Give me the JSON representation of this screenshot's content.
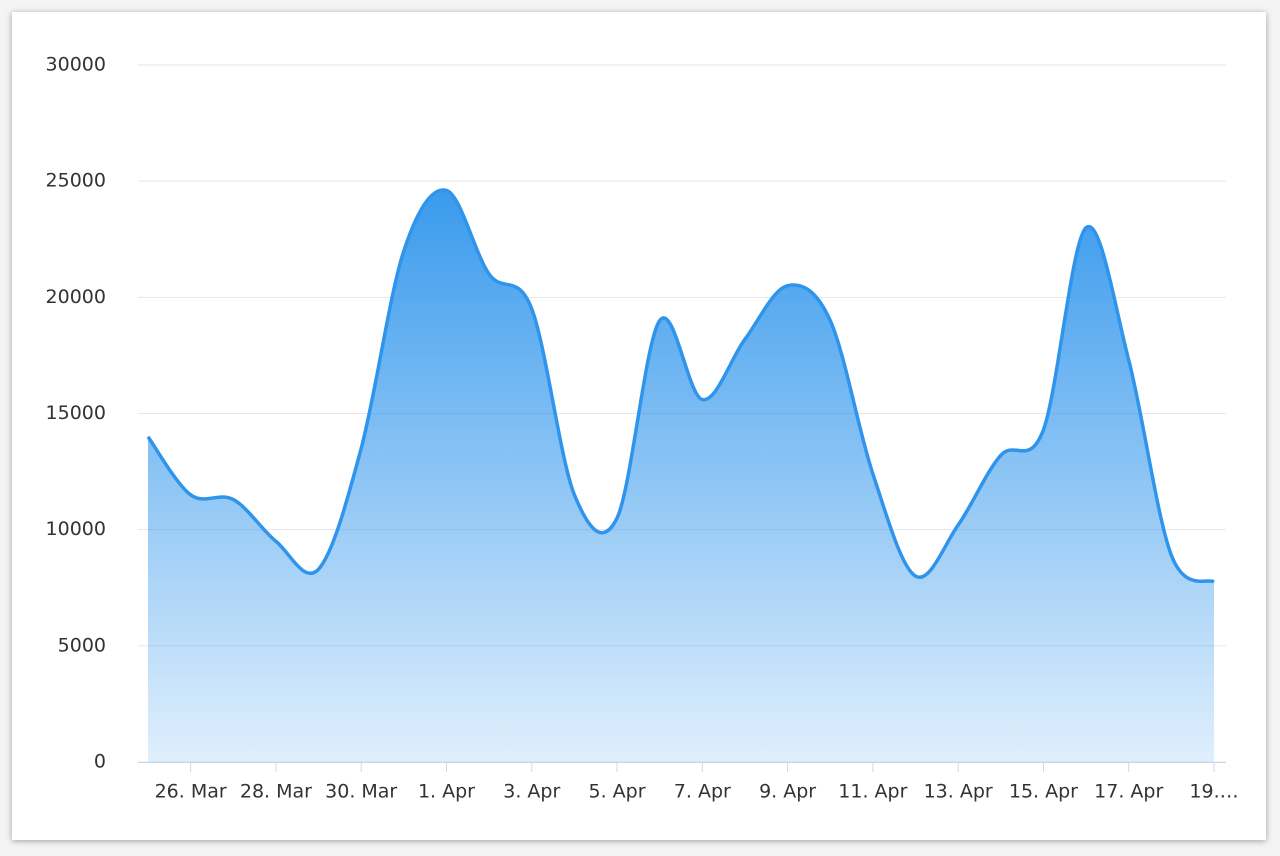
{
  "chart_data": {
    "type": "area",
    "categories": [
      null,
      "26. Mar",
      null,
      "28. Mar",
      null,
      "30. Mar",
      null,
      "1. Apr",
      null,
      "3. Apr",
      null,
      "5. Apr",
      null,
      "7. Apr",
      null,
      "9. Apr",
      null,
      "11. Apr",
      null,
      "13. Apr",
      null,
      "15. Apr",
      null,
      "17. Apr",
      null,
      "19.…"
    ],
    "values": [
      14000,
      11500,
      11300,
      9500,
      8300,
      13500,
      22000,
      24600,
      21000,
      19500,
      11500,
      10500,
      19000,
      15600,
      18200,
      20500,
      19000,
      12400,
      8000,
      10200,
      13200,
      14300,
      23000,
      17300,
      8900,
      7750
    ],
    "color": "#2f95ec",
    "ylim": [
      0,
      30000
    ],
    "yticks": [
      0,
      5000,
      10000,
      15000,
      20000,
      25000,
      30000
    ],
    "grid": true
  }
}
